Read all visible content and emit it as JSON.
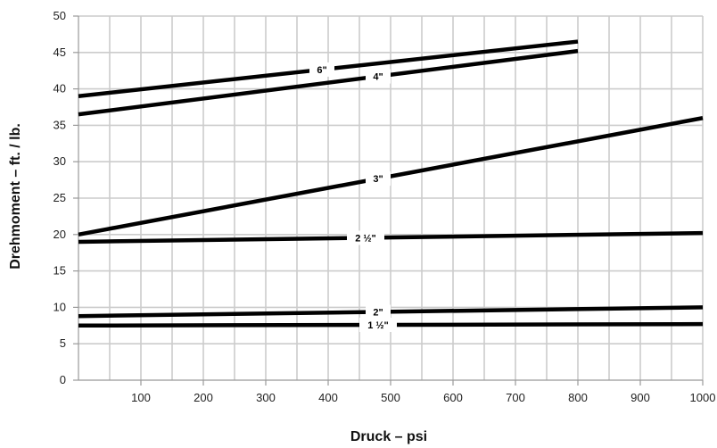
{
  "chart_data": {
    "type": "line",
    "title": "",
    "xlabel": "Druck – psi",
    "ylabel": "Drehmoment – ft. / lb.",
    "xlim": [
      0,
      1000
    ],
    "ylim": [
      0,
      50
    ],
    "x_ticks": [
      100,
      200,
      300,
      400,
      500,
      600,
      700,
      800,
      900,
      1000
    ],
    "y_ticks": [
      0,
      5,
      10,
      15,
      20,
      25,
      30,
      35,
      40,
      45,
      50
    ],
    "grid": true,
    "legend": "none",
    "line_color": "#000000",
    "grid_color": "#cccccc",
    "series": [
      {
        "name": "6\"",
        "x": [
          0,
          800
        ],
        "y": [
          39,
          46.5
        ],
        "label_at": 390
      },
      {
        "name": "4\"",
        "x": [
          0,
          800
        ],
        "y": [
          36.5,
          45.2
        ],
        "label_at": 480
      },
      {
        "name": "3\"",
        "x": [
          0,
          1000
        ],
        "y": [
          20,
          36
        ],
        "label_at": 480
      },
      {
        "name": "2 ½\"",
        "x": [
          0,
          1000
        ],
        "y": [
          19,
          20.2
        ],
        "label_at": 460
      },
      {
        "name": "2\"",
        "x": [
          0,
          1000
        ],
        "y": [
          8.8,
          10
        ],
        "label_at": 480
      },
      {
        "name": "1 ½\"",
        "x": [
          0,
          1000
        ],
        "y": [
          7.5,
          7.7
        ],
        "label_at": 480
      }
    ]
  }
}
